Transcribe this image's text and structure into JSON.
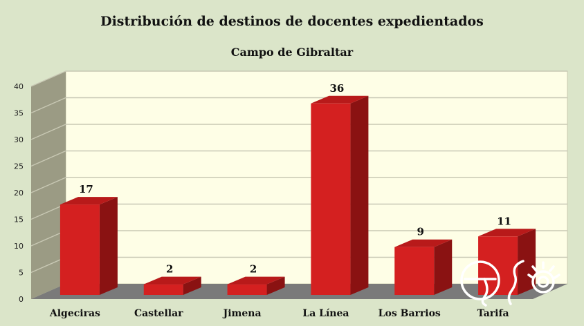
{
  "chart_data": {
    "type": "bar",
    "title": "Distribución de destinos de docentes expedientados",
    "subtitle": "Campo de Gibraltar",
    "categories": [
      "Algeciras",
      "Castellar",
      "Jimena",
      "La Línea",
      "Los Barrios",
      "Tarifa"
    ],
    "values": [
      17,
      2,
      2,
      36,
      9,
      11
    ],
    "yticks": [
      "0",
      "5",
      "10",
      "15",
      "20",
      "25",
      "30",
      "35",
      "40"
    ],
    "ylim": [
      0,
      40
    ],
    "grid": true,
    "three_d": true,
    "bar_color": "#d42020",
    "bar_side_color": "#8a1212",
    "plot_background": "#fefee6",
    "side_wall_color": "#9b9b84",
    "floor_color": "#7a7a7a"
  },
  "logo": {
    "icon": "watermark-logo-icon"
  }
}
